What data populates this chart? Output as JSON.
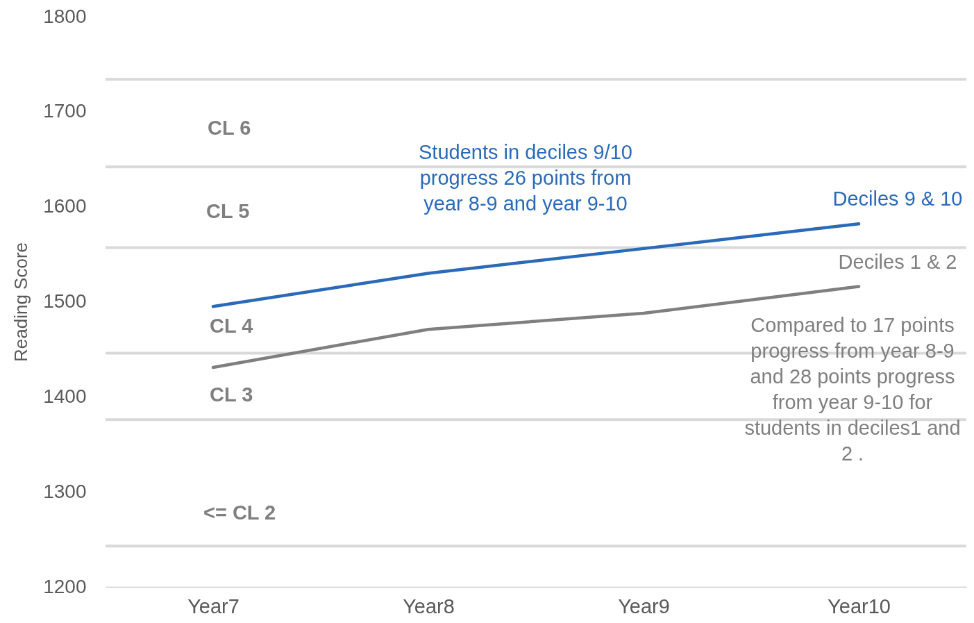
{
  "chart_data": {
    "type": "line",
    "ylabel": "Reading Score",
    "categories": [
      "Year7",
      "Year8",
      "Year9",
      "Year10"
    ],
    "series": [
      {
        "name": "Deciles 9 & 10",
        "color": "#2a6ab8",
        "values": [
          1495,
          1530,
          1556,
          1582
        ]
      },
      {
        "name": "Deciles 1 & 2",
        "color": "#7f7f7f",
        "values": [
          1431,
          1471,
          1488,
          1516
        ]
      }
    ],
    "ylim": [
      1200,
      1800
    ],
    "yticks": [
      1200,
      1300,
      1400,
      1500,
      1600,
      1700,
      1800
    ],
    "grid": false,
    "legend": false,
    "ref_lines": [
      {
        "axis": "y",
        "value": 1734,
        "color": "#d9d9d9"
      },
      {
        "axis": "y",
        "value": 1642,
        "color": "#d9d9d9"
      },
      {
        "axis": "y",
        "value": 1557,
        "color": "#d9d9d9"
      },
      {
        "axis": "y",
        "value": 1446,
        "color": "#d9d9d9"
      },
      {
        "axis": "y",
        "value": 1376,
        "color": "#d9d9d9"
      },
      {
        "axis": "y",
        "value": 1243,
        "color": "#d9d9d9"
      }
    ],
    "annotations": [
      "Students in deciles 9/10\nprogress 26 points from\nyear 8-9 and year 9-10",
      "Compared to 17 points\nprogress from year 8-9\nand 28 points progress\nfrom year 9-10 for\nstudents in deciles1 and\n2 .",
      "CL 6",
      "CL 5",
      "CL 4",
      "CL 3",
      "<= CL 2"
    ]
  }
}
